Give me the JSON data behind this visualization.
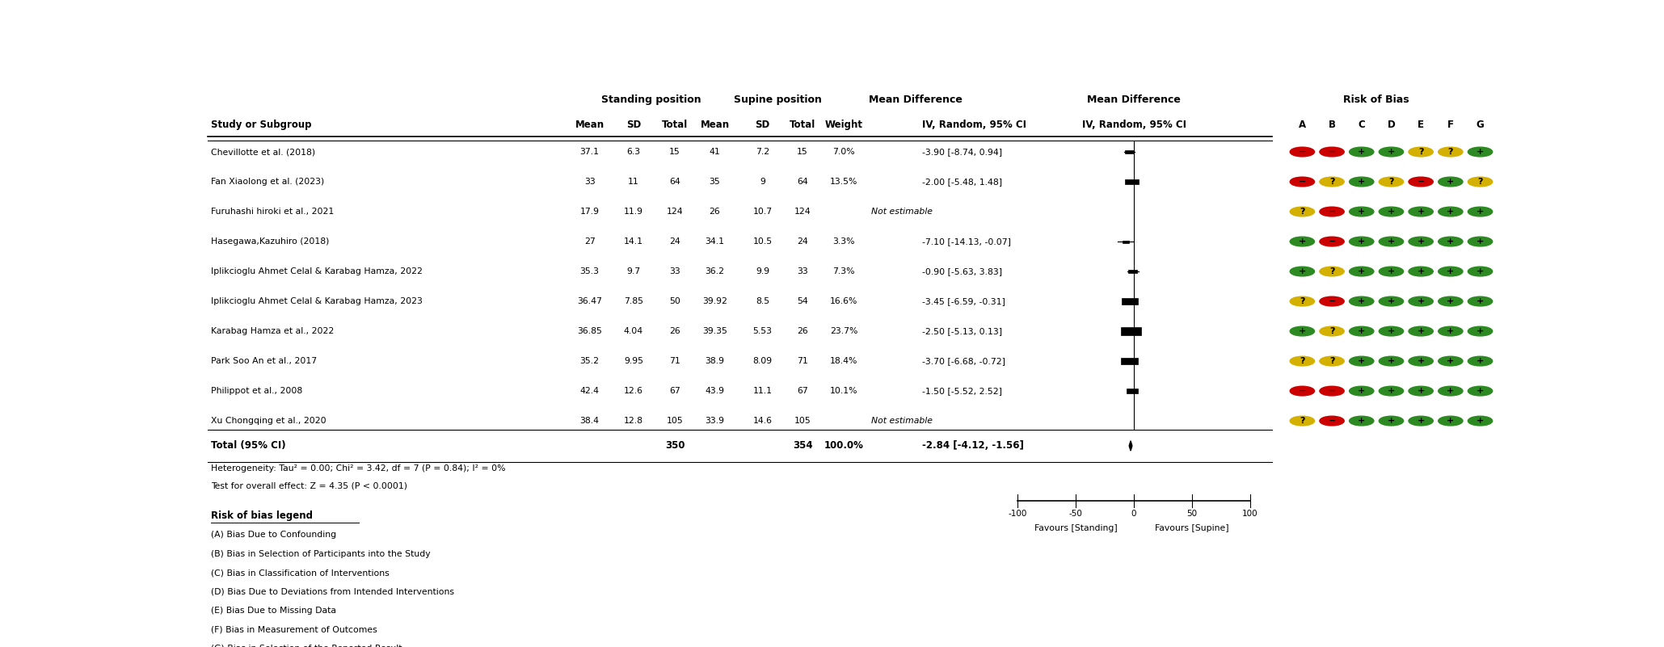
{
  "studies": [
    {
      "name": "Chevillotte et al. (2018)",
      "mean1": 37.1,
      "sd1": 6.3,
      "n1": 15,
      "mean2": 41,
      "sd2": 7.2,
      "n2": 15,
      "weight": 7.0,
      "md": -3.9,
      "ci_low": -8.74,
      "ci_high": 0.94,
      "estimable": true
    },
    {
      "name": "Fan Xiaolong et al. (2023)",
      "mean1": 33,
      "sd1": 11,
      "n1": 64,
      "mean2": 35,
      "sd2": 9,
      "n2": 64,
      "weight": 13.5,
      "md": -2.0,
      "ci_low": -5.48,
      "ci_high": 1.48,
      "estimable": true
    },
    {
      "name": "Furuhashi hiroki et al., 2021",
      "mean1": 17.9,
      "sd1": 11.9,
      "n1": 124,
      "mean2": 26,
      "sd2": 10.7,
      "n2": 124,
      "weight": null,
      "md": null,
      "ci_low": null,
      "ci_high": null,
      "estimable": false
    },
    {
      "name": "Hasegawa,Kazuhiro (2018)",
      "mean1": 27,
      "sd1": 14.1,
      "n1": 24,
      "mean2": 34.1,
      "sd2": 10.5,
      "n2": 24,
      "weight": 3.3,
      "md": -7.1,
      "ci_low": -14.13,
      "ci_high": -0.07,
      "estimable": true
    },
    {
      "name": "Iplikcioglu Ahmet Celal & Karabag Hamza, 2022",
      "mean1": 35.3,
      "sd1": 9.7,
      "n1": 33,
      "mean2": 36.2,
      "sd2": 9.9,
      "n2": 33,
      "weight": 7.3,
      "md": -0.9,
      "ci_low": -5.63,
      "ci_high": 3.83,
      "estimable": true
    },
    {
      "name": "Iplikcioglu Ahmet Celal & Karabag Hamza, 2023",
      "mean1": 36.47,
      "sd1": 7.85,
      "n1": 50,
      "mean2": 39.92,
      "sd2": 8.5,
      "n2": 54,
      "weight": 16.6,
      "md": -3.45,
      "ci_low": -6.59,
      "ci_high": -0.31,
      "estimable": true
    },
    {
      "name": "Karabag Hamza et al., 2022",
      "mean1": 36.85,
      "sd1": 4.04,
      "n1": 26,
      "mean2": 39.35,
      "sd2": 5.53,
      "n2": 26,
      "weight": 23.7,
      "md": -2.5,
      "ci_low": -5.13,
      "ci_high": 0.13,
      "estimable": true
    },
    {
      "name": "Park Soo An et al., 2017",
      "mean1": 35.2,
      "sd1": 9.95,
      "n1": 71,
      "mean2": 38.9,
      "sd2": 8.09,
      "n2": 71,
      "weight": 18.4,
      "md": -3.7,
      "ci_low": -6.68,
      "ci_high": -0.72,
      "estimable": true
    },
    {
      "name": "Philippot et al., 2008",
      "mean1": 42.4,
      "sd1": 12.6,
      "n1": 67,
      "mean2": 43.9,
      "sd2": 11.1,
      "n2": 67,
      "weight": 10.1,
      "md": -1.5,
      "ci_low": -5.52,
      "ci_high": 2.52,
      "estimable": true
    },
    {
      "name": "Xu Chongqing et al., 2020",
      "mean1": 38.4,
      "sd1": 12.8,
      "n1": 105,
      "mean2": 33.9,
      "sd2": 14.6,
      "n2": 105,
      "weight": null,
      "md": null,
      "ci_low": null,
      "ci_high": null,
      "estimable": false
    }
  ],
  "total_n1": 350,
  "total_n2": 354,
  "total_weight": 100.0,
  "total_md": -2.84,
  "total_ci_low": -4.12,
  "total_ci_high": -1.56,
  "heterogeneity_text": "Heterogeneity: Tau² = 0.00; Chi² = 3.42, df = 7 (P = 0.84); I² = 0%",
  "overall_effect_text": "Test for overall effect: Z = 4.35 (P < 0.0001)",
  "axis_min": -100,
  "axis_max": 100,
  "axis_ticks": [
    -100,
    -50,
    0,
    50,
    100
  ],
  "favour_left": "Favours [Standing]",
  "favour_right": "Favours [Supine]",
  "risk_of_bias": [
    [
      "red",
      "red",
      "green",
      "green",
      "yellow",
      "yellow",
      "green"
    ],
    [
      "red",
      "yellow",
      "green",
      "yellow",
      "red",
      "green",
      "yellow"
    ],
    [
      "yellow",
      "red",
      "green",
      "green",
      "green",
      "green",
      "green"
    ],
    [
      "green",
      "red",
      "green",
      "green",
      "green",
      "green",
      "green"
    ],
    [
      "green",
      "yellow",
      "green",
      "green",
      "green",
      "green",
      "green"
    ],
    [
      "yellow",
      "red",
      "green",
      "green",
      "green",
      "green",
      "green"
    ],
    [
      "green",
      "yellow",
      "green",
      "green",
      "green",
      "green",
      "green"
    ],
    [
      "yellow",
      "yellow",
      "green",
      "green",
      "green",
      "green",
      "green"
    ],
    [
      "red",
      "red",
      "green",
      "green",
      "green",
      "green",
      "green"
    ],
    [
      "yellow",
      "red",
      "green",
      "green",
      "green",
      "green",
      "green"
    ]
  ],
  "risk_labels": [
    "A",
    "B",
    "C",
    "D",
    "E",
    "F",
    "G"
  ],
  "bias_legend": [
    "(A) Bias Due to Confounding",
    "(B) Bias in Selection of Participants into the Study",
    "(C) Bias in Classification of Interventions",
    "(D) Bias Due to Deviations from Intended Interventions",
    "(E) Bias Due to Missing Data",
    "(F) Bias in Measurement of Outcomes",
    "(G) Bias in Selection of the Reported Result"
  ]
}
